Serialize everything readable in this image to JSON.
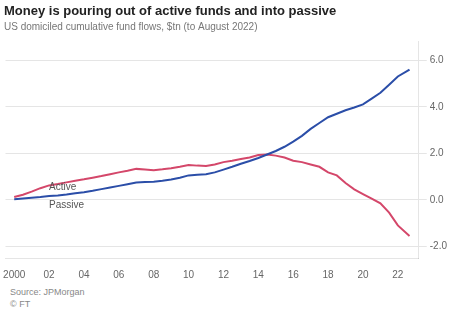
{
  "chart_data": {
    "type": "line",
    "title": "Money is pouring out of active funds and into passive",
    "subtitle": "US domiciled cumulative fund flows, $tn (to August 2022)",
    "source": [
      "Source: JPMorgan",
      "© FT"
    ],
    "x": [
      2000,
      2000.5,
      2001,
      2001.5,
      2002,
      2002.5,
      2003,
      2003.5,
      2004,
      2004.5,
      2005,
      2005.5,
      2006,
      2006.5,
      2007,
      2007.5,
      2008,
      2008.5,
      2009,
      2009.5,
      2010,
      2010.5,
      2011,
      2011.5,
      2012,
      2012.5,
      2013,
      2013.5,
      2014,
      2014.5,
      2015,
      2015.5,
      2016,
      2016.5,
      2017,
      2017.5,
      2018,
      2018.5,
      2019,
      2019.5,
      2020,
      2020.5,
      2021,
      2021.5,
      2022,
      2022.67
    ],
    "series": [
      {
        "color": "#2b4ea8",
        "values": [
          0.03,
          0.06,
          0.09,
          0.12,
          0.16,
          0.19,
          0.23,
          0.28,
          0.33,
          0.39,
          0.46,
          0.53,
          0.6,
          0.67,
          0.74,
          0.77,
          0.78,
          0.82,
          0.87,
          0.95,
          1.05,
          1.08,
          1.1,
          1.18,
          1.3,
          1.42,
          1.55,
          1.67,
          1.8,
          1.95,
          2.1,
          2.28,
          2.5,
          2.75,
          3.05,
          3.3,
          3.55,
          3.7,
          3.85,
          3.97,
          4.1,
          4.35,
          4.6,
          4.95,
          5.3,
          5.6
        ]
      },
      {
        "color": "#d4476a",
        "values": [
          0.12,
          0.22,
          0.35,
          0.5,
          0.62,
          0.68,
          0.75,
          0.82,
          0.88,
          0.95,
          1.02,
          1.1,
          1.18,
          1.25,
          1.33,
          1.3,
          1.27,
          1.31,
          1.36,
          1.42,
          1.5,
          1.47,
          1.45,
          1.52,
          1.62,
          1.68,
          1.75,
          1.82,
          1.93,
          1.95,
          1.9,
          1.82,
          1.68,
          1.62,
          1.52,
          1.42,
          1.18,
          1.05,
          0.72,
          0.45,
          0.25,
          0.05,
          -0.15,
          -0.55,
          -1.1,
          -1.55
        ]
      }
    ],
    "annotations": [
      {
        "text": "Active",
        "x": 2002.0,
        "y": 0.52
      },
      {
        "text": "Passive",
        "x": 2002.0,
        "y": -0.25
      }
    ],
    "xlim": [
      1999.5,
      2023.2
    ],
    "xticks": [
      2000,
      {
        "value": 2002,
        "label": "02"
      },
      {
        "value": 2004,
        "label": "04"
      },
      {
        "value": 2006,
        "label": "06"
      },
      {
        "value": 2008,
        "label": "08"
      },
      {
        "value": 2010,
        "label": "10"
      },
      {
        "value": 2012,
        "label": "12"
      },
      {
        "value": 2014,
        "label": "14"
      },
      {
        "value": 2016,
        "label": "16"
      },
      {
        "value": 2018,
        "label": "18"
      },
      {
        "value": 2020,
        "label": "20"
      },
      {
        "value": 2022,
        "label": "22"
      }
    ],
    "ylim": [
      -2.5,
      6.8
    ],
    "yticks": [
      {
        "value": -2.0,
        "label": "-2.0"
      },
      {
        "value": 0.0,
        "label": "0.0"
      },
      {
        "value": 2.0,
        "label": "2.0"
      },
      {
        "value": 4.0,
        "label": "4.0"
      },
      {
        "value": 6.0,
        "label": "6.0"
      }
    ],
    "grid": true
  }
}
